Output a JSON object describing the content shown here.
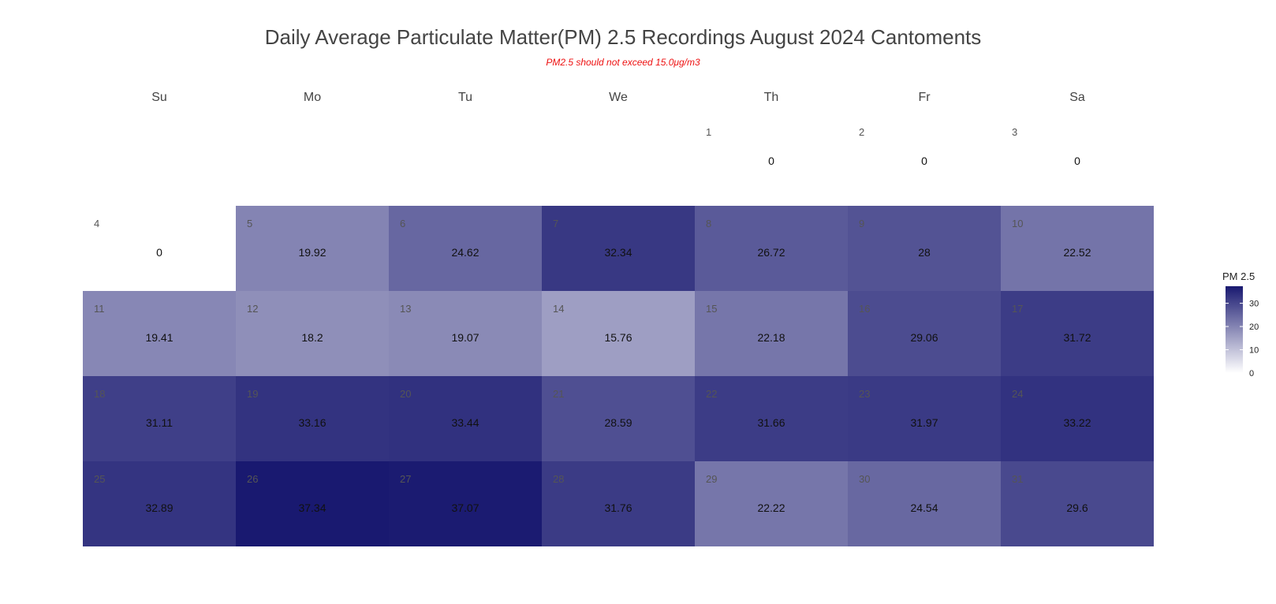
{
  "chart_data": {
    "type": "heatmap",
    "title": "Daily Average Particulate Matter(PM) 2.5 Recordings August 2024 Cantoments",
    "subtitle": "PM2.5 should not exceed 15.0μg/m3",
    "subtitle_color": "#ee1111",
    "weekdays": [
      "Su",
      "Mo",
      "Tu",
      "We",
      "Th",
      "Fr",
      "Sa"
    ],
    "first_weekday_index": 4,
    "days": [
      {
        "day": 1,
        "value": 0
      },
      {
        "day": 2,
        "value": 0
      },
      {
        "day": 3,
        "value": 0
      },
      {
        "day": 4,
        "value": 0
      },
      {
        "day": 5,
        "value": 19.92
      },
      {
        "day": 6,
        "value": 24.62
      },
      {
        "day": 7,
        "value": 32.34
      },
      {
        "day": 8,
        "value": 26.72
      },
      {
        "day": 9,
        "value": 28
      },
      {
        "day": 10,
        "value": 22.52
      },
      {
        "day": 11,
        "value": 19.41
      },
      {
        "day": 12,
        "value": 18.2
      },
      {
        "day": 13,
        "value": 19.07
      },
      {
        "day": 14,
        "value": 15.76
      },
      {
        "day": 15,
        "value": 22.18
      },
      {
        "day": 16,
        "value": 29.06
      },
      {
        "day": 17,
        "value": 31.72
      },
      {
        "day": 18,
        "value": 31.11
      },
      {
        "day": 19,
        "value": 33.16
      },
      {
        "day": 20,
        "value": 33.44
      },
      {
        "day": 21,
        "value": 28.59
      },
      {
        "day": 22,
        "value": 31.66
      },
      {
        "day": 23,
        "value": 31.97
      },
      {
        "day": 24,
        "value": 33.22
      },
      {
        "day": 25,
        "value": 32.89
      },
      {
        "day": 26,
        "value": 37.34
      },
      {
        "day": 27,
        "value": 37.07
      },
      {
        "day": 28,
        "value": 31.76
      },
      {
        "day": 29,
        "value": 22.22
      },
      {
        "day": 30,
        "value": 24.54
      },
      {
        "day": 31,
        "value": 29.6
      }
    ],
    "hidden_first_week": true,
    "legend": {
      "title": "PM 2.5",
      "ticks": [
        0,
        10,
        20,
        30
      ],
      "range": [
        0,
        37.34
      ],
      "placement": "right"
    },
    "color_scale": {
      "low": "#ffffff",
      "high": "#191970"
    }
  }
}
